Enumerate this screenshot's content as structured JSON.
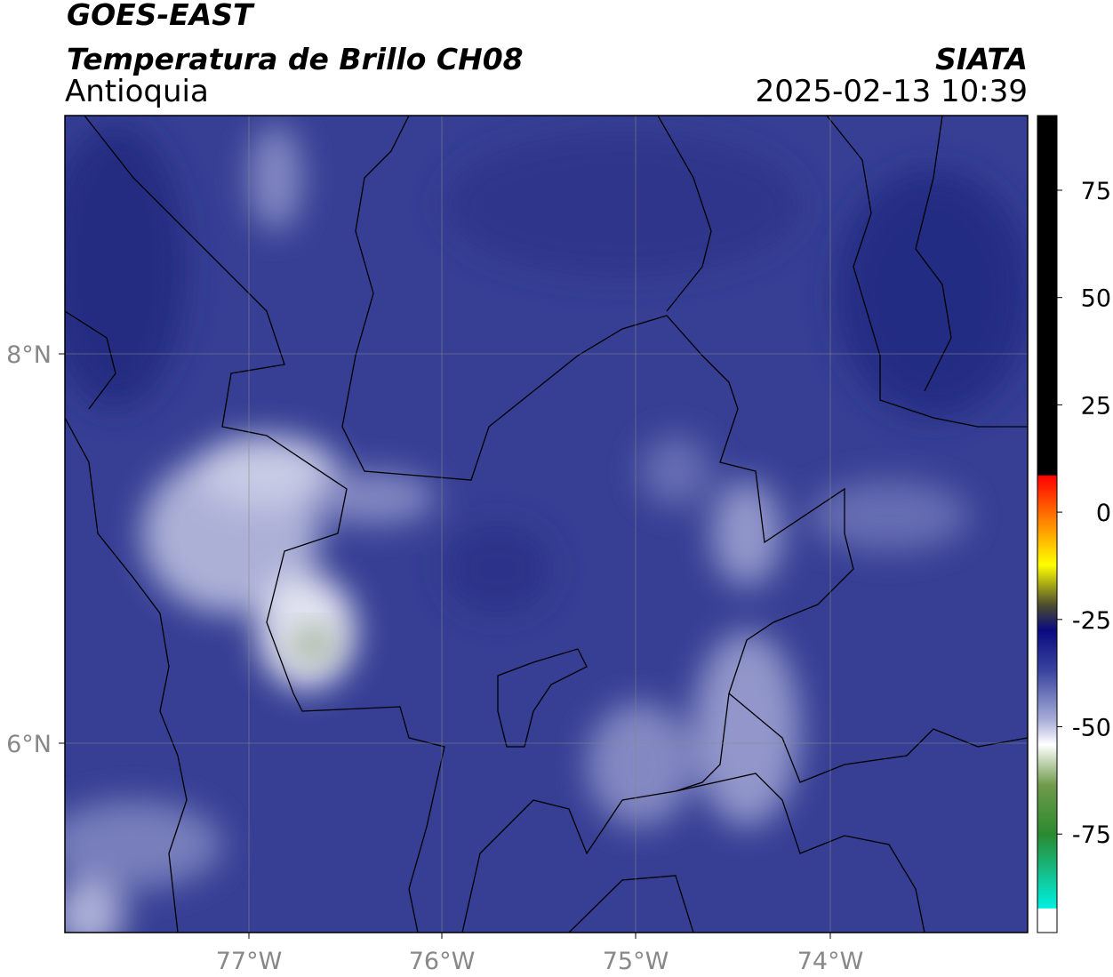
{
  "header": {
    "title": "GOES-EAST",
    "subtitle": "Temperatura de Brillo CH08",
    "region": "Antioquia",
    "source": "SIATA",
    "timestamp": "2025-02-13 10:39"
  },
  "map": {
    "lat_labels": [
      "8°N",
      "6°N"
    ],
    "lon_labels": [
      "77°W",
      "76°W",
      "75°W",
      "74°W"
    ]
  },
  "colorbar": {
    "labels": [
      "75",
      "50",
      "25",
      "0",
      "-25",
      "-50",
      "-75"
    ]
  }
}
